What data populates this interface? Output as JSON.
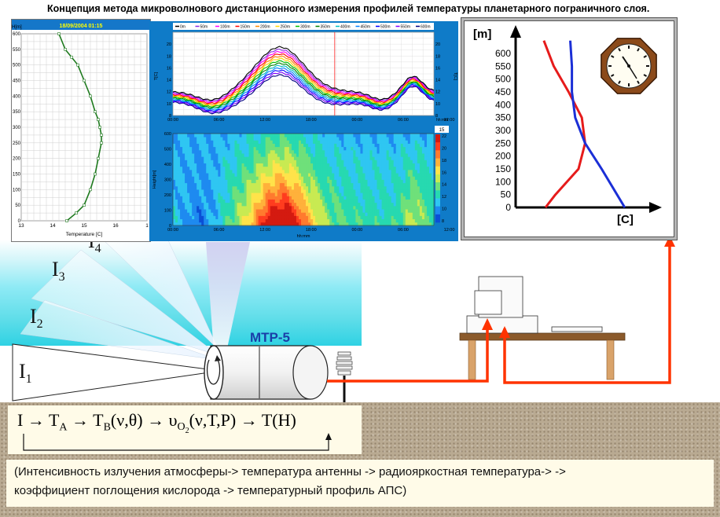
{
  "title": "Концепция метода микроволнового дистанционного измерения профилей температуры планетарного пограничного слоя.",
  "instrument_label": "MTP-5",
  "beams": [
    {
      "label": "I",
      "sub": "1"
    },
    {
      "label": "I",
      "sub": "2"
    },
    {
      "label": "I",
      "sub": "3"
    },
    {
      "label": "I",
      "sub": "4"
    }
  ],
  "formula": {
    "i": "I",
    "arrow": "→",
    "ta": "T",
    "ta_sub": "A",
    "tb": "T",
    "tb_sub": "B",
    "tb_args": "(ν,θ)",
    "ups": "υ",
    "ups_sub": "O",
    "ups_sub2": "2",
    "ups_args": "(ν,T,P)",
    "th": "T(H)"
  },
  "caption": {
    "line1": "(Интенсивность излучения атмосферы-> температура антенны -> радиояркостная температура-> ->",
    "line2": "коэффициент поглощения кислорода -> температурный профиль АПС)"
  },
  "colors": {
    "profile_line": "#1e7a1e",
    "red_arrow": "#ff3300",
    "blue_text": "#1a3ea8",
    "panel_blue": "#0f7bc8"
  },
  "chart_data": [
    {
      "type": "line",
      "title": "18/09/2004 01:15",
      "xlabel": "Temperature [C]",
      "ylabel": "H[m]",
      "xlim": [
        13,
        17
      ],
      "ylim": [
        0,
        600
      ],
      "x_ticks": [
        "13",
        "14",
        "15",
        "16",
        "1"
      ],
      "y_ticks": [
        "0",
        "50",
        "100",
        "150",
        "200",
        "250",
        "300",
        "350",
        "400",
        "450",
        "500",
        "550",
        "600"
      ],
      "series": [
        {
          "x": [
            14.45,
            14.75,
            15.0,
            15.2,
            15.35,
            15.45,
            15.55,
            15.55,
            15.5,
            15.45,
            15.35,
            15.2,
            15.0,
            14.8,
            14.6,
            14.4,
            14.2
          ],
          "y": [
            0,
            25,
            50,
            100,
            150,
            200,
            250,
            275,
            300,
            325,
            350,
            400,
            450,
            500,
            525,
            550,
            600
          ]
        }
      ]
    },
    {
      "type": "line",
      "xlabel": "hh:mm",
      "ylabel": "T[C]",
      "ylim": [
        8,
        22
      ],
      "x_ticks": [
        "00:00",
        "06:00",
        "12:00",
        "18:00",
        "00:00",
        "06:00",
        "12:00"
      ],
      "y_ticks_left": [
        "8",
        "10",
        "12",
        "14",
        "16",
        "18",
        "20"
      ],
      "y_ticks_right": [
        "8",
        "10",
        "12",
        "14",
        "16",
        "18",
        "20"
      ],
      "legend": [
        "0m",
        "50m",
        "100m",
        "150m",
        "200m",
        "250m",
        "300m",
        "350m",
        "400m",
        "450m",
        "500m",
        "550m",
        "600m"
      ]
    },
    {
      "type": "heatmap",
      "xlabel": "hh:mm",
      "ylabel": "Height[m]",
      "x_ticks": [
        "00:00",
        "06:00",
        "12:00",
        "18:00",
        "00:00",
        "06:00",
        "12:00"
      ],
      "y_ticks": [
        "0",
        "100",
        "200",
        "300",
        "400",
        "500",
        "600"
      ],
      "colorbar_header": "15",
      "colorbar_labels": [
        "22",
        "20",
        "18",
        "16",
        "14",
        "12",
        "10",
        "8"
      ]
    },
    {
      "type": "line",
      "ylabel": "[m]",
      "xlabel": "[C]",
      "ylim": [
        0,
        600
      ],
      "y_ticks": [
        "600",
        "550",
        "500",
        "450",
        "400",
        "350",
        "300",
        "250",
        "200",
        "150",
        "100",
        "50",
        "0"
      ],
      "series": [
        {
          "x": [
            0.0,
            0.3,
            1.0,
            1.2,
            1.1,
            0.7,
            0.25,
            -0.05
          ],
          "y": [
            0,
            50,
            150,
            250,
            350,
            450,
            550,
            650
          ]
        },
        {
          "x": [
            2.4,
            1.7,
            1.2,
            0.9,
            0.8,
            0.8,
            0.75
          ],
          "y": [
            0,
            150,
            250,
            350,
            450,
            550,
            650
          ]
        }
      ]
    }
  ]
}
